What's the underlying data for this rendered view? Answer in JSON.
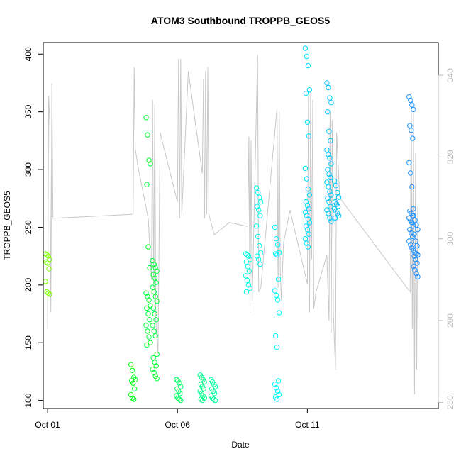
{
  "chart_data": {
    "type": "scatter",
    "title": "ATOM3 Southbound TROPPB_GEOS5",
    "xlabel": "Date",
    "ylabel": "TROPPB_GEOS5",
    "x_axis": {
      "type": "date",
      "range": [
        "2016-09-30T20:00",
        "2016-10-16T01:00"
      ],
      "ticks": [
        {
          "value": "2016-10-01",
          "label": "Oct 01"
        },
        {
          "value": "2016-10-06",
          "label": "Oct 06"
        },
        {
          "value": "2016-10-11",
          "label": "Oct 11"
        }
      ]
    },
    "y_axis_left": {
      "range": [
        93,
        410
      ],
      "ticks": [
        100,
        150,
        200,
        250,
        300,
        350,
        400
      ]
    },
    "y_axis_right": {
      "range": [
        258.5,
        348
      ],
      "ticks": [
        260,
        280,
        300,
        320,
        340
      ],
      "color": "#bdbdbd"
    },
    "grid": false,
    "legend": "none",
    "series": [
      {
        "kind": "points",
        "axis": "left",
        "marker": "open-circle",
        "color_scale": [
          "#7FFF00",
          "#00FF00",
          "#00FF7F",
          "#00FFFF",
          "#00BFFF",
          "#1E90FF"
        ],
        "clusters": [
          {
            "date": "2016-10-01T00:00",
            "values": [
              227,
              226,
              225,
              222,
              220,
              219,
              214,
              203,
              194,
              193,
              192
            ]
          },
          {
            "date": "2016-10-04T07:00",
            "values": [
              131,
              126,
              120,
              118,
              117,
              115,
              110,
              105,
              102,
              101
            ]
          },
          {
            "date": "2016-10-04T21:00",
            "values": [
              345,
              330,
              308,
              305,
              287,
              233,
              215,
              193,
              190,
              187,
              182,
              180,
              175,
              170,
              165,
              160,
              155,
              150,
              148
            ]
          },
          {
            "date": "2016-10-05T03:00",
            "values": [
              221,
              218,
              215,
              212,
              209,
              206,
              202,
              198,
              194,
              190,
              186,
              180,
              175,
              170,
              165,
              160,
              156,
              140,
              137,
              133,
              130,
              127,
              124,
              121,
              119
            ]
          },
          {
            "date": "2016-10-06T01:00",
            "values": [
              118,
              117,
              115,
              112,
              110,
              108,
              106,
              104,
              102,
              101,
              100
            ]
          },
          {
            "date": "2016-10-06T23:00",
            "values": [
              122,
              120,
              118,
              116,
              114,
              112,
              110,
              108,
              106,
              104,
              102,
              101,
              100
            ]
          },
          {
            "date": "2016-10-07T09:00",
            "values": [
              118,
              116,
              114,
              112,
              110,
              108,
              106,
              104,
              102,
              101,
              100
            ]
          },
          {
            "date": "2016-10-08T17:00",
            "values": [
              227,
              226,
              225,
              222,
              220,
              216,
              212,
              208,
              204,
              200,
              197,
              194
            ]
          },
          {
            "date": "2016-10-09T03:00",
            "values": [
              284,
              280,
              276,
              272,
              268,
              265,
              260,
              251,
              242,
              234,
              228,
              225,
              222,
              218
            ]
          },
          {
            "date": "2016-10-09T20:00",
            "values": [
              250,
              240,
              235,
              228,
              227,
              226,
              205,
              195,
              191,
              187,
              176,
              156,
              146,
              117,
              114,
              111,
              108,
              105,
              103,
              101
            ]
          },
          {
            "date": "2016-10-11T00:00",
            "values": [
              405,
              398,
              390,
              369,
              366,
              341,
              329,
              301,
              292,
              283,
              278,
              272,
              269,
              266,
              263,
              260,
              257,
              254,
              251,
              248,
              244,
              240,
              236,
              233
            ]
          },
          {
            "date": "2016-10-11T20:00",
            "values": [
              375,
              371,
              362,
              358,
              350,
              333,
              325,
              317,
              313,
              310,
              305,
              300,
              296,
              293,
              289,
              285,
              281,
              278,
              275,
              272,
              268,
              265,
              262,
              258,
              255
            ]
          },
          {
            "date": "2016-10-12T03:00",
            "values": [
              290,
              286,
              280,
              276,
              272,
              270,
              268,
              266,
              264,
              262,
              260,
              258
            ]
          },
          {
            "date": "2016-10-15T00:00",
            "values": [
              363,
              360,
              356,
              352,
              338,
              334,
              327,
              306,
              297,
              285,
              266,
              264,
              262,
              260,
              258,
              256,
              254,
              251,
              248,
              245,
              242,
              238,
              235,
              232
            ]
          },
          {
            "date": "2016-10-15T04:00",
            "values": [
              260,
              256,
              252,
              248,
              244,
              238,
              234,
              230,
              228,
              227,
              226,
              225,
              222,
              219,
              216,
              213,
              210,
              207
            ]
          }
        ]
      },
      {
        "kind": "line",
        "axis": "right",
        "color": "#c8c8c8",
        "points": [
          [
            "2016-10-01T00:00",
            278
          ],
          [
            "2016-10-01T01:00",
            335
          ],
          [
            "2016-10-01T02:00",
            328
          ],
          [
            "2016-10-01T03:00",
            282
          ],
          [
            "2016-10-01T04:00",
            338
          ],
          [
            "2016-10-01T05:00",
            305
          ],
          [
            "2016-10-04T07:00",
            306
          ],
          [
            "2016-10-04T08:00",
            342
          ],
          [
            "2016-10-04T09:00",
            322
          ],
          [
            "2016-10-04T12:00",
            317
          ],
          [
            "2016-10-04T21:00",
            305
          ],
          [
            "2016-10-05T00:00",
            290
          ],
          [
            "2016-10-05T01:00",
            334
          ],
          [
            "2016-10-05T02:00",
            288
          ],
          [
            "2016-10-05T03:00",
            333
          ],
          [
            "2016-10-05T04:00",
            280
          ],
          [
            "2016-10-05T06:00",
            272
          ],
          [
            "2016-10-05T08:00",
            326
          ],
          [
            "2016-10-06T00:00",
            309
          ],
          [
            "2016-10-06T01:00",
            344
          ],
          [
            "2016-10-06T02:00",
            305
          ],
          [
            "2016-10-06T03:00",
            344
          ],
          [
            "2016-10-06T04:00",
            306
          ],
          [
            "2016-10-06T10:00",
            341
          ],
          [
            "2016-10-06T23:00",
            316
          ],
          [
            "2016-10-07T00:00",
            339
          ],
          [
            "2016-10-07T01:00",
            305
          ],
          [
            "2016-10-07T02:00",
            341
          ],
          [
            "2016-10-07T03:00",
            306
          ],
          [
            "2016-10-07T04:00",
            342
          ],
          [
            "2016-10-07T05:00",
            306
          ],
          [
            "2016-10-07T10:00",
            301
          ],
          [
            "2016-10-08T00:00",
            304
          ],
          [
            "2016-10-08T17:00",
            303
          ],
          [
            "2016-10-08T18:00",
            325
          ],
          [
            "2016-10-08T19:00",
            282
          ],
          [
            "2016-10-08T20:00",
            324
          ],
          [
            "2016-10-08T21:00",
            284
          ],
          [
            "2016-10-09T02:00",
            345
          ],
          [
            "2016-10-09T03:00",
            287
          ],
          [
            "2016-10-09T05:00",
            288
          ],
          [
            "2016-10-09T20:00",
            332
          ],
          [
            "2016-10-09T21:00",
            288
          ],
          [
            "2016-10-09T22:00",
            331
          ],
          [
            "2016-10-09T23:00",
            292
          ],
          [
            "2016-10-10T00:00",
            285
          ],
          [
            "2016-10-10T02:00",
            299
          ],
          [
            "2016-10-10T08:00",
            307
          ],
          [
            "2016-10-11T00:00",
            289
          ],
          [
            "2016-10-11T01:00",
            335
          ],
          [
            "2016-10-11T02:00",
            282
          ],
          [
            "2016-10-11T03:00",
            336
          ],
          [
            "2016-10-11T04:00",
            295
          ],
          [
            "2016-10-11T05:00",
            334
          ],
          [
            "2016-10-11T06:00",
            283
          ],
          [
            "2016-10-11T08:00",
            287
          ],
          [
            "2016-10-11T18:00",
            296
          ],
          [
            "2016-10-11T20:00",
            280
          ],
          [
            "2016-10-11T21:00",
            331
          ],
          [
            "2016-10-11T22:00",
            277
          ],
          [
            "2016-10-11T23:00",
            329
          ],
          [
            "2016-10-12T00:00",
            282
          ],
          [
            "2016-10-12T02:00",
            268
          ],
          [
            "2016-10-12T03:00",
            326
          ],
          [
            "2016-10-12T06:00",
            310
          ],
          [
            "2016-10-14T23:00",
            287
          ],
          [
            "2016-10-15T00:00",
            335
          ],
          [
            "2016-10-15T01:00",
            278
          ],
          [
            "2016-10-15T02:00",
            331
          ],
          [
            "2016-10-15T03:00",
            262
          ],
          [
            "2016-10-15T04:00",
            321
          ],
          [
            "2016-10-15T05:00",
            268
          ],
          [
            "2016-10-15T06:00",
            308
          ]
        ]
      }
    ]
  }
}
